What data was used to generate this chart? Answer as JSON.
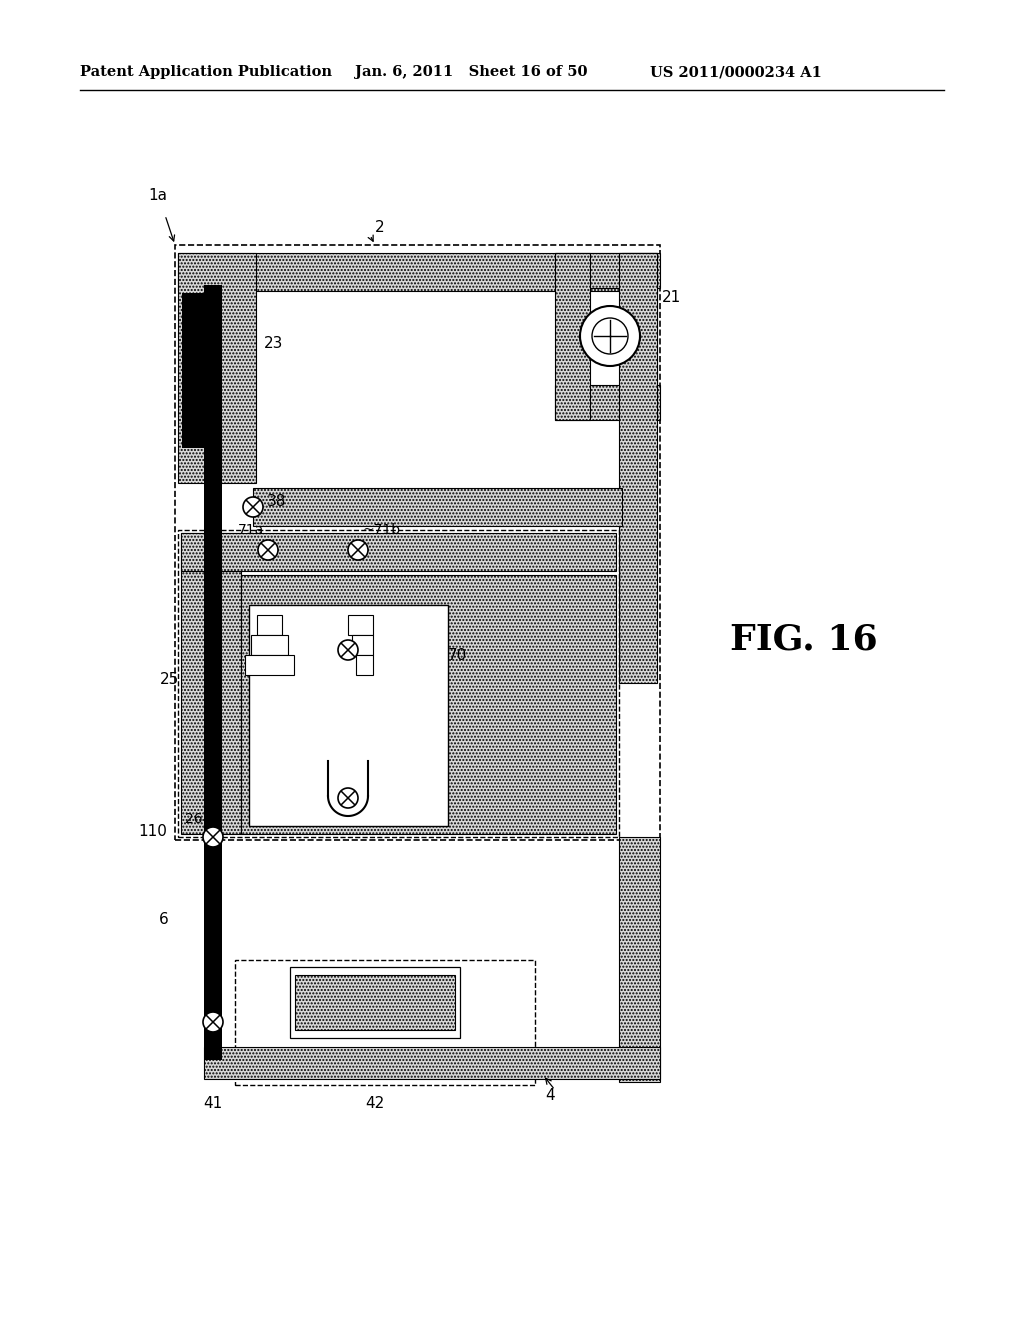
{
  "bg_color": "#ffffff",
  "lc": "#000000",
  "header_left": "Patent Application Publication",
  "header_mid": "Jan. 6, 2011   Sheet 16 of 50",
  "header_right": "US 2011/0000234 A1",
  "fig_label": "FIG. 16"
}
